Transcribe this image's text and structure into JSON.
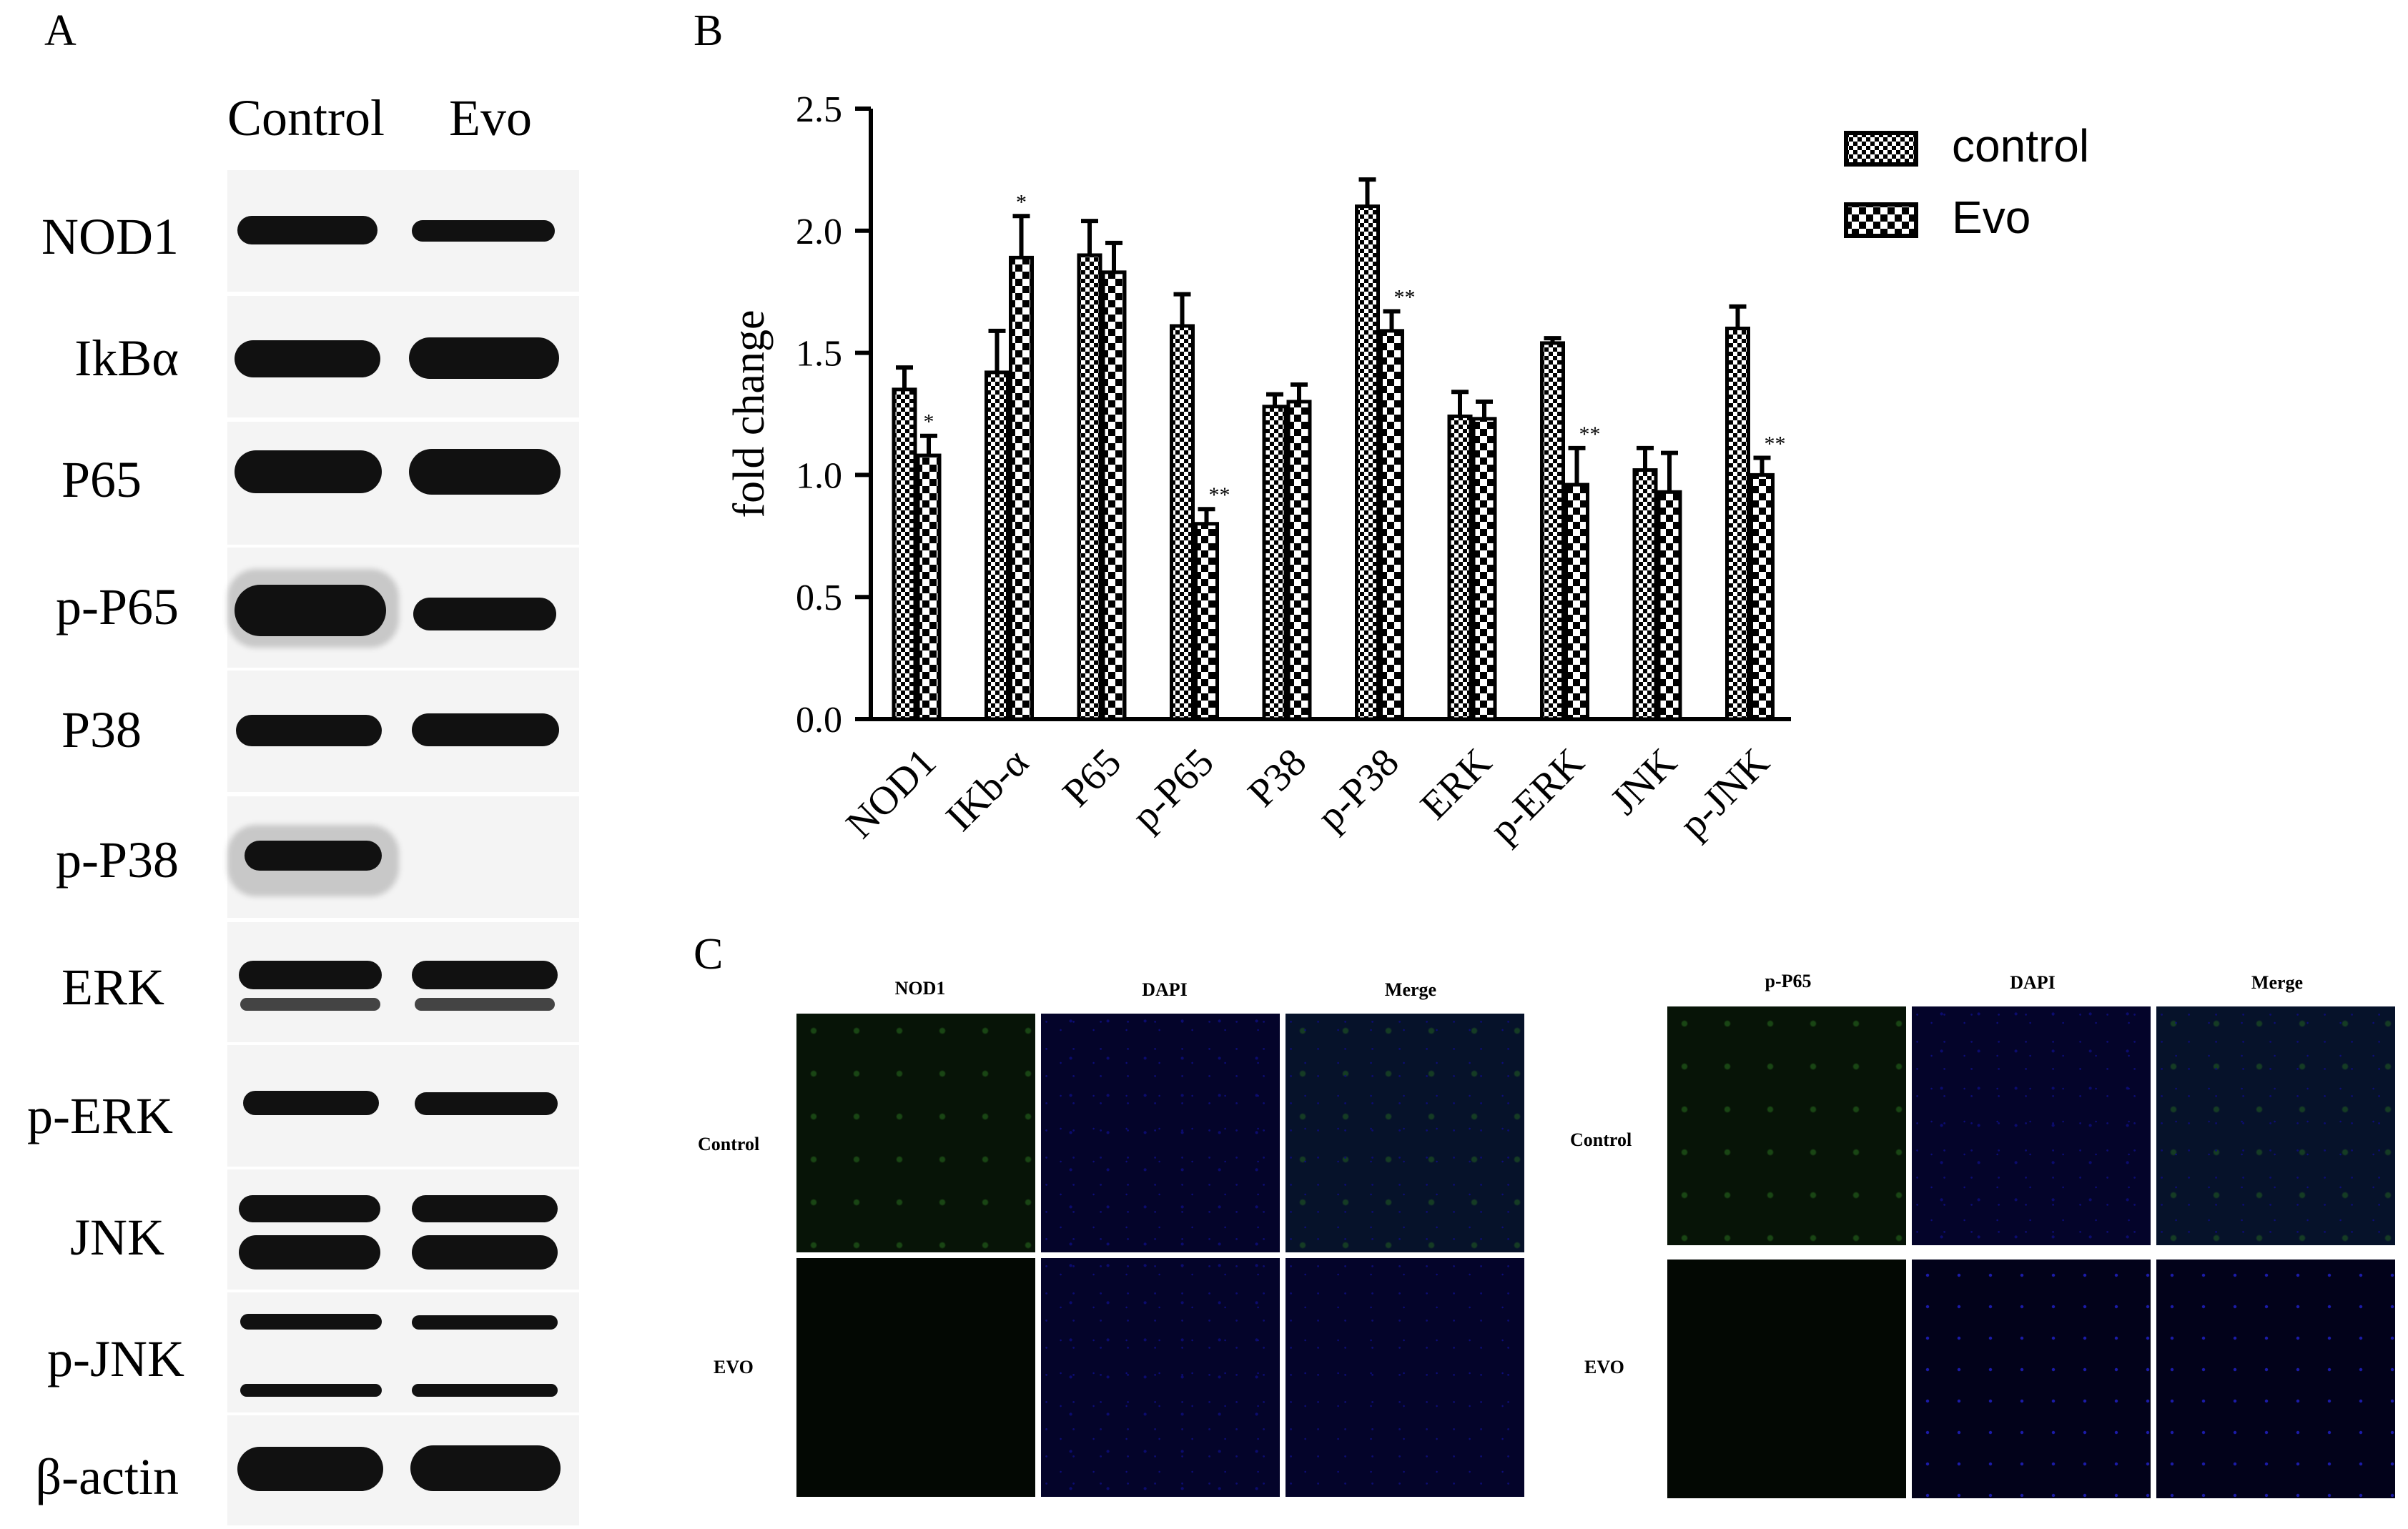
{
  "panels": {
    "a": "A",
    "b": "B",
    "c": "C"
  },
  "western_blot": {
    "columns": [
      "Control",
      "Evo"
    ],
    "rows": [
      "NOD1",
      "IkBα",
      "P65",
      "p-P65",
      "P38",
      "p-P38",
      "ERK",
      "p-ERK",
      "JNK",
      "p-JNK",
      "β-actin"
    ]
  },
  "chart_data": {
    "type": "bar",
    "ylabel": "fold change",
    "xlabel": "",
    "ylim": [
      0,
      2.5
    ],
    "yticks": [
      "0.0",
      "0.5",
      "1.0",
      "1.5",
      "2.0",
      "2.5"
    ],
    "categories": [
      "NOD1",
      "IKb-α",
      "P65",
      "p-P65",
      "P38",
      "p-P38",
      "ERK",
      "p-ERK",
      "JNK",
      "p-JNK"
    ],
    "legend_position": "top-right",
    "series": [
      {
        "name": "control",
        "values": [
          1.35,
          1.42,
          1.9,
          1.61,
          1.28,
          2.1,
          1.24,
          1.54,
          1.02,
          1.6
        ],
        "errors": [
          0.09,
          0.17,
          0.14,
          0.13,
          0.05,
          0.11,
          0.1,
          0.02,
          0.09,
          0.09
        ]
      },
      {
        "name": "Evo",
        "values": [
          1.08,
          1.89,
          1.83,
          0.8,
          1.3,
          1.59,
          1.23,
          0.96,
          0.93,
          1.0
        ],
        "errors": [
          0.08,
          0.17,
          0.12,
          0.06,
          0.07,
          0.08,
          0.07,
          0.15,
          0.16,
          0.07
        ]
      }
    ],
    "significance": [
      "*",
      "*",
      "",
      "**",
      "",
      "**",
      "",
      "**",
      "",
      "**"
    ]
  },
  "immunofluorescence": {
    "left": {
      "columns": [
        "NOD1",
        "DAPI",
        "Merge"
      ],
      "rows": [
        "Control",
        "EVO"
      ]
    },
    "right": {
      "columns": [
        "p-P65",
        "DAPI",
        "Merge"
      ],
      "rows": [
        "Control",
        "EVO"
      ]
    }
  }
}
